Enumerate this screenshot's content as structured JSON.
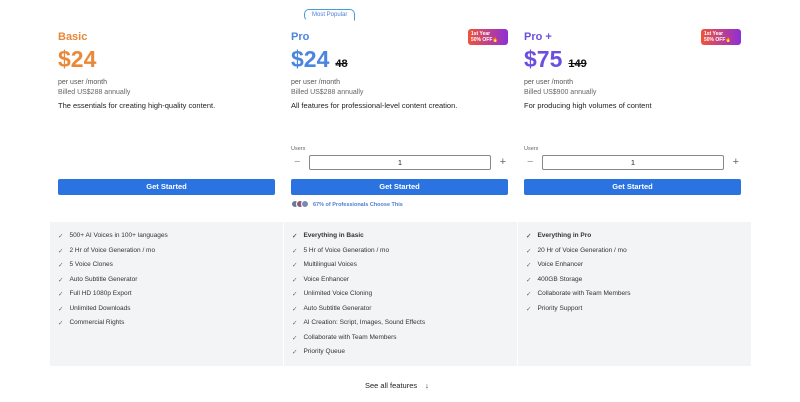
{
  "plans": [
    {
      "name": "Basic",
      "color": "#e8893a",
      "price": "$24",
      "old": "",
      "per": "per user /month",
      "billed": "Billed US$288 annually",
      "desc": "The essentials for creating high-quality content.",
      "badge_line1": "",
      "badge_line2": "",
      "cta": "Get Started",
      "features": [
        "500+ AI Voices in 100+ languages",
        "2 Hr of Voice Generation / mo",
        "5 Voice Clones",
        "Auto Subtitle Generator",
        "Full HD 1080p Export",
        "Unlimited Downloads",
        "Commercial Rights"
      ]
    },
    {
      "name": "Pro",
      "color": "#4a86e0",
      "tag": "Most Popular",
      "price": "$24",
      "old": "48",
      "per": "per user /month",
      "billed": "Billed US$288 annually",
      "desc": "All features for professional-level content creation.",
      "badge_line1": "1st Year",
      "badge_line2": "50% OFF🔥",
      "users_label": "Users",
      "users_value": "1",
      "cta": "Get Started",
      "social": "67% of Professionals Choose This",
      "features": [
        "Everything in Basic",
        "5 Hr of Voice Generation / mo",
        "Multilingual Voices",
        "Voice Enhancer",
        "Unlimited Voice Cloning",
        "Auto Subtitle Generator",
        "AI Creation: Script, Images, Sound Effects",
        "Collaborate with Team Members",
        "Priority Queue"
      ]
    },
    {
      "name": "Pro +",
      "color": "#6c4fe0",
      "price": "$75",
      "old": "149",
      "per": "per user /month",
      "billed": "Billed US$900 annually",
      "desc": "For producing high volumes of content",
      "badge_line1": "1st Year",
      "badge_line2": "50% OFF🔥",
      "users_label": "Users",
      "users_value": "1",
      "cta": "Get Started",
      "features": [
        "Everything in Pro",
        "20 Hr of Voice Generation / mo",
        "Voice Enhancer",
        "400GB Storage",
        "Collaborate with Team Members",
        "Priority Support"
      ]
    }
  ],
  "see_all": "See all features",
  "see_all_icon": "arrow-down-icon"
}
